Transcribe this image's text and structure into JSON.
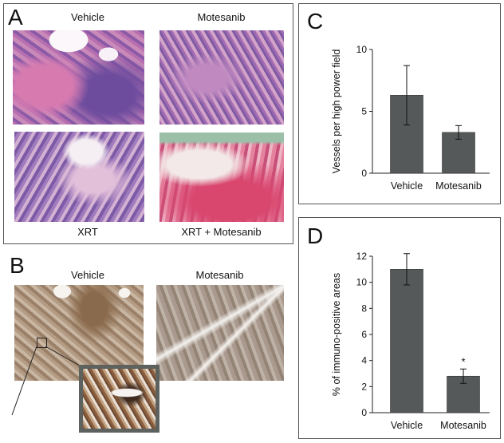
{
  "panel_A": {
    "letter": "A",
    "captions": {
      "vehicle": "Vehicle",
      "motesanib": "Motesanib",
      "xrt": "XRT",
      "xrt_motesanib": "XRT + Motesanib"
    }
  },
  "panel_B": {
    "letter": "B",
    "captions": {
      "vehicle": "Vehicle",
      "motesanib": "Motesanib"
    }
  },
  "colors": {
    "bar": "#55595a",
    "frame": "#5d625f"
  },
  "chart_data": [
    {
      "panel": "C",
      "type": "bar",
      "categories": [
        "Vehicle",
        "Motesanib"
      ],
      "values": [
        6.3,
        3.3
      ],
      "errors": [
        2.4,
        0.55
      ],
      "ylabel": "Vessels per high power field",
      "ylim": [
        0,
        10
      ],
      "yticks": [
        "0",
        "5",
        "10"
      ],
      "annotations": []
    },
    {
      "panel": "D",
      "type": "bar",
      "categories": [
        "Vehicle",
        "Motesanib"
      ],
      "values": [
        11.0,
        2.8
      ],
      "errors": [
        1.2,
        0.55
      ],
      "ylabel": "% of immuno-positive areas",
      "ylim": [
        0,
        12
      ],
      "yticks": [
        "0",
        "2",
        "4",
        "6",
        "8",
        "10",
        "12"
      ],
      "annotations": [
        "*"
      ]
    }
  ]
}
